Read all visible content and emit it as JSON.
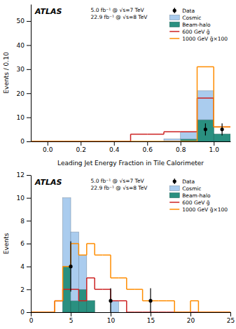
{
  "chart_data": [
    {
      "type": "histogram",
      "x_label": "Leading Jet Energy Fraction in Tile Calorimeter",
      "y_label": "Events / 0.10",
      "annotations": [
        "ATLAS",
        "5.0 fb⁻¹ @ √s=7 TeV",
        "22.9 fb⁻¹ @ √s=8 TeV"
      ],
      "bins": [
        -0.1,
        0.0,
        0.1,
        0.2,
        0.3,
        0.4,
        0.5,
        0.6,
        0.7,
        0.8,
        0.9,
        1.0,
        1.1
      ],
      "xlim": [
        -0.1,
        1.1
      ],
      "ylim": [
        0,
        57
      ],
      "xticks": [
        {
          "value": 0,
          "label": "0.0"
        },
        0.2,
        0.4,
        0.6,
        0.8,
        {
          "value": 1.0,
          "label": "1.0"
        }
      ],
      "yticks": [
        0,
        10,
        20,
        30,
        40,
        50
      ],
      "stacked": true,
      "legend": "top-right",
      "series": [
        {
          "name": "Data",
          "type": "scatter",
          "marker": "circle",
          "color": "#000000",
          "x": [
            0.95,
            1.05
          ],
          "values": [
            5,
            5
          ],
          "errors": [
            2.5,
            2.5
          ]
        },
        {
          "name": "Cosmic",
          "type": "bar",
          "color": "#aaccee",
          "values": [
            0,
            0,
            0,
            0,
            0,
            0,
            0,
            0,
            1,
            3,
            12,
            0
          ]
        },
        {
          "name": "Beam-halo",
          "type": "bar",
          "color": "#2a9080",
          "values": [
            0,
            0,
            0,
            0,
            0,
            0,
            0,
            0,
            0,
            1,
            9,
            3
          ]
        },
        {
          "name": "600 GeV g̃",
          "type": "step",
          "color": "#cc2222",
          "values": [
            0,
            0,
            0,
            0,
            0,
            0,
            3,
            3,
            4,
            4,
            18,
            6
          ]
        },
        {
          "name": "1000 GeV g̃×100",
          "type": "step",
          "color": "#ff8c00",
          "values": [
            0,
            0,
            0,
            0,
            0,
            0,
            0,
            0,
            0,
            0,
            31,
            6
          ]
        }
      ]
    },
    {
      "type": "histogram",
      "y_label": "Events",
      "annotations": [
        "ATLAS",
        "5.0 fb⁻¹ @ √s=7 TeV",
        "22.9 fb⁻¹ @ √s=8 TeV"
      ],
      "bins": [
        0,
        1,
        2,
        3,
        4,
        5,
        6,
        7,
        8,
        9,
        10,
        11,
        12,
        13,
        14,
        15,
        16,
        17,
        18,
        19,
        20,
        21,
        22,
        23,
        24,
        25
      ],
      "xlim": [
        0,
        25
      ],
      "ylim": [
        0,
        12
      ],
      "xticks": [
        0,
        5,
        10,
        15,
        20,
        25
      ],
      "yticks": [
        0,
        2,
        4,
        6,
        8,
        10,
        12
      ],
      "stacked": true,
      "legend": "top-right",
      "series": [
        {
          "name": "Data",
          "type": "scatter",
          "marker": "circle",
          "color": "#000000",
          "x": [
            5,
            10,
            15
          ],
          "values": [
            4,
            1,
            1
          ],
          "errors": [
            2.2,
            1.1,
            1.1
          ]
        },
        {
          "name": "Cosmic",
          "type": "bar",
          "color": "#aaccee",
          "values": [
            0,
            0,
            0,
            0,
            6,
            6,
            3,
            0,
            0,
            0,
            1,
            0,
            0,
            0,
            0,
            0,
            0,
            0,
            0,
            0,
            0,
            0,
            0,
            0,
            0
          ]
        },
        {
          "name": "Beam-halo",
          "type": "bar",
          "color": "#2a9080",
          "values": [
            0,
            0,
            0,
            0,
            4,
            1,
            2,
            1,
            0,
            0,
            0,
            0,
            0,
            0,
            0,
            0,
            0,
            0,
            0,
            0,
            0,
            0,
            0,
            0,
            0
          ]
        },
        {
          "name": "600 GeV g̃",
          "type": "step",
          "color": "#cc2222",
          "values": [
            0,
            0,
            0,
            1,
            2,
            2,
            1,
            3,
            2,
            2,
            1,
            1,
            0,
            0,
            0,
            0,
            0,
            0,
            0,
            0,
            0,
            0,
            0,
            0,
            0
          ]
        },
        {
          "name": "1000 GeV g̃×100",
          "type": "step",
          "color": "#ff8c00",
          "values": [
            0,
            0,
            0,
            1,
            4,
            6,
            5,
            6,
            5,
            5,
            3,
            3,
            2,
            2,
            1,
            1,
            1,
            1,
            0,
            0,
            1,
            0,
            0,
            0,
            0
          ]
        }
      ]
    }
  ]
}
